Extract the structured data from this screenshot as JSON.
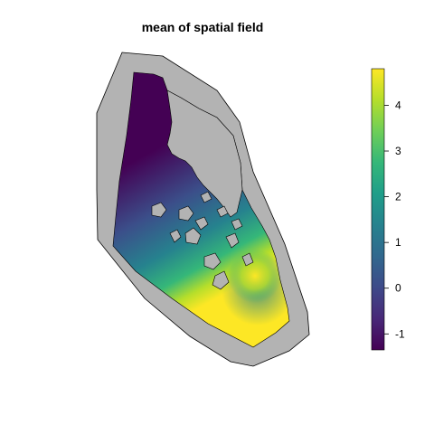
{
  "title": "mean of spatial field",
  "colorbar": {
    "min": -1.35,
    "max": 4.8,
    "ticks": [
      {
        "value": 4,
        "label": "4"
      },
      {
        "value": 3,
        "label": "3"
      },
      {
        "value": 2,
        "label": "2"
      },
      {
        "value": 1,
        "label": "1"
      },
      {
        "value": 0,
        "label": "0"
      },
      {
        "value": -1,
        "label": "-1"
      }
    ],
    "colors": [
      "#440154",
      "#482878",
      "#3e4a89",
      "#31688e",
      "#26828e",
      "#1f9e89",
      "#35b779",
      "#6ece58",
      "#b5de2b",
      "#fde725"
    ]
  },
  "colors": {
    "mesh_fill": "#b3b3b3",
    "outline": "#000000"
  }
}
